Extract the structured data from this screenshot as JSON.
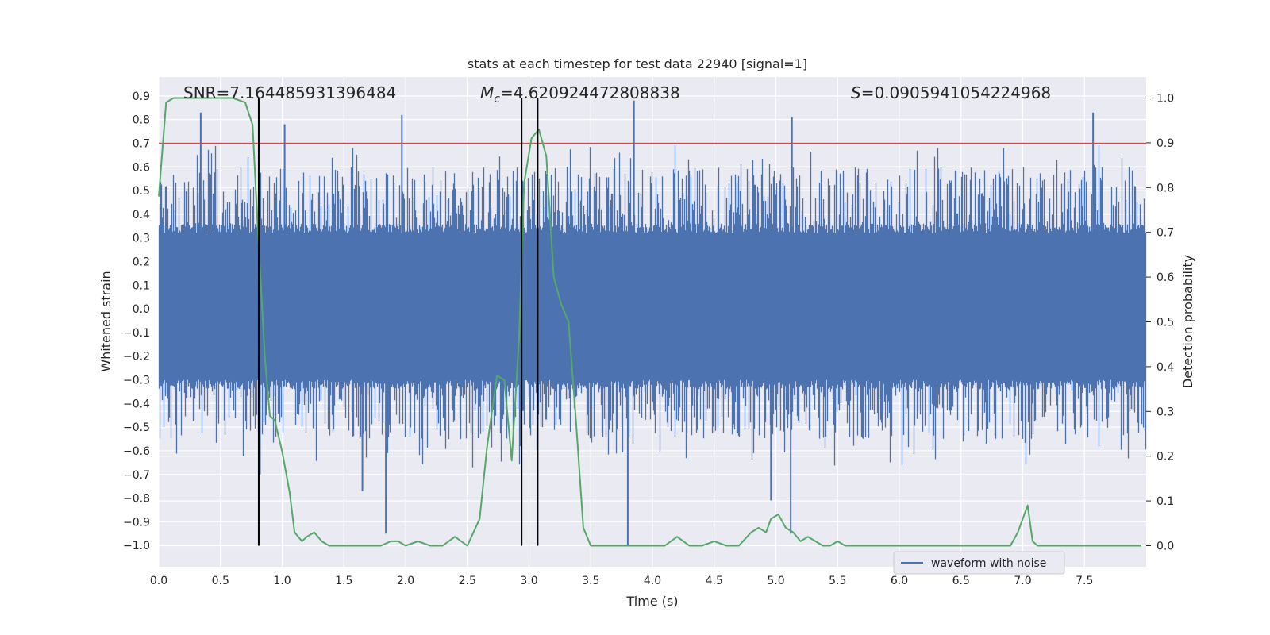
{
  "chart_data": {
    "type": "line",
    "title": "stats at each timestep for test data 22940 [signal=1]",
    "xlabel": "Time (s)",
    "ylabel": "Whitened strain",
    "ylabel_right": "Detection probability",
    "xlim": [
      0.0,
      8.0
    ],
    "ylim": [
      -1.09,
      0.98
    ],
    "ylim_right": [
      -0.047,
      1.047
    ],
    "xticks": [
      "0.0",
      "0.5",
      "1.0",
      "1.5",
      "2.0",
      "2.5",
      "3.0",
      "3.5",
      "4.0",
      "4.5",
      "5.0",
      "5.5",
      "6.0",
      "6.5",
      "7.0",
      "7.5"
    ],
    "yticks": [
      "0.9",
      "0.8",
      "0.7",
      "0.6",
      "0.5",
      "0.4",
      "0.3",
      "0.2",
      "0.1",
      "0.0",
      "−0.1",
      "−0.2",
      "−0.3",
      "−0.4",
      "−0.5",
      "−0.6",
      "−0.7",
      "−0.8",
      "−0.9",
      "−1.0"
    ],
    "yticks_right": [
      "1.0",
      "0.9",
      "0.8",
      "0.7",
      "0.6",
      "0.5",
      "0.4",
      "0.3",
      "0.2",
      "0.1",
      "0.0"
    ],
    "waveform_series": {
      "name": "waveform with noise",
      "color": "#4c72b0",
      "sample_rate_hz": 2048,
      "core_band": [
        -0.3,
        0.32
      ],
      "typical_peaks": [
        -0.55,
        0.6
      ],
      "extreme_peaks": [
        {
          "x": 0.34,
          "y": 0.83
        },
        {
          "x": 1.02,
          "y": 0.78
        },
        {
          "x": 1.97,
          "y": 0.82
        },
        {
          "x": 3.85,
          "y": 0.88
        },
        {
          "x": 5.13,
          "y": 0.81
        },
        {
          "x": 7.57,
          "y": 0.83
        },
        {
          "x": 0.82,
          "y": -0.7
        },
        {
          "x": 1.84,
          "y": -0.95
        },
        {
          "x": 3.8,
          "y": -1.0
        },
        {
          "x": 5.12,
          "y": -0.95
        },
        {
          "x": 4.96,
          "y": -0.81
        },
        {
          "x": 1.65,
          "y": -0.77
        }
      ]
    },
    "detection_probability": {
      "name": "Detection probability",
      "color": "#55a868",
      "x": [
        0.0,
        0.06,
        0.12,
        0.2,
        0.3,
        0.4,
        0.5,
        0.6,
        0.7,
        0.76,
        0.8,
        0.86,
        0.9,
        0.94,
        1.0,
        1.06,
        1.1,
        1.16,
        1.2,
        1.26,
        1.32,
        1.38,
        1.44,
        1.5,
        1.6,
        1.7,
        1.8,
        1.88,
        1.94,
        2.0,
        2.1,
        2.2,
        2.3,
        2.4,
        2.5,
        2.6,
        2.66,
        2.74,
        2.8,
        2.86,
        2.92,
        2.96,
        3.02,
        3.08,
        3.14,
        3.2,
        3.26,
        3.32,
        3.38,
        3.44,
        3.5,
        3.6,
        3.7,
        3.8,
        3.9,
        4.0,
        4.1,
        4.2,
        4.3,
        4.4,
        4.5,
        4.6,
        4.7,
        4.8,
        4.86,
        4.92,
        4.96,
        5.02,
        5.08,
        5.14,
        5.2,
        5.26,
        5.32,
        5.38,
        5.44,
        5.5,
        5.56,
        5.64,
        5.7,
        5.8,
        5.9,
        6.0,
        6.1,
        6.2,
        6.3,
        6.4,
        6.5,
        6.6,
        6.7,
        6.8,
        6.9,
        6.96,
        7.0,
        7.04,
        7.08,
        7.12,
        7.18,
        7.28,
        7.4,
        7.5,
        7.6,
        7.7,
        7.8,
        7.96
      ],
      "y": [
        0.78,
        0.99,
        1.0,
        1.0,
        1.0,
        1.0,
        1.0,
        1.0,
        0.99,
        0.94,
        0.72,
        0.42,
        0.29,
        0.28,
        0.21,
        0.12,
        0.03,
        0.01,
        0.02,
        0.03,
        0.01,
        0.0,
        0.0,
        0.0,
        0.0,
        0.0,
        0.0,
        0.01,
        0.01,
        0.0,
        0.01,
        0.0,
        0.0,
        0.02,
        0.0,
        0.06,
        0.22,
        0.38,
        0.37,
        0.19,
        0.47,
        0.81,
        0.91,
        0.93,
        0.87,
        0.6,
        0.54,
        0.5,
        0.28,
        0.04,
        0.0,
        0.0,
        0.0,
        0.0,
        0.0,
        0.0,
        0.0,
        0.02,
        0.0,
        0.0,
        0.01,
        0.0,
        0.0,
        0.03,
        0.04,
        0.03,
        0.06,
        0.07,
        0.04,
        0.03,
        0.01,
        0.02,
        0.01,
        0.0,
        0.0,
        0.01,
        0.0,
        0.0,
        0.0,
        0.0,
        0.0,
        0.0,
        0.0,
        0.0,
        0.0,
        0.0,
        0.0,
        0.0,
        0.0,
        0.0,
        0.0,
        0.03,
        0.06,
        0.09,
        0.01,
        0.0,
        0.0,
        0.0,
        0.0,
        0.0,
        0.0,
        0.0,
        0.0,
        0.0
      ]
    },
    "threshold_line": {
      "y": 0.7,
      "color": "#c44e52"
    },
    "vertical_lines": [
      {
        "x": 0.81,
        "color": "#000000"
      },
      {
        "x": 2.94,
        "color": "#000000"
      },
      {
        "x": 3.07,
        "color": "#000000"
      }
    ],
    "annotations": {
      "snr": "SNR=7.164485931396484",
      "mc_prefix": "M",
      "mc_sub": "c",
      "mc_value": "=4.620924472808838",
      "s_prefix": "S",
      "s_value": "=0.0905941054224968"
    },
    "legend": {
      "entries": [
        "waveform with noise"
      ],
      "placement": "lower-right"
    },
    "grid": true,
    "plot_background": "#eaeaf2"
  }
}
